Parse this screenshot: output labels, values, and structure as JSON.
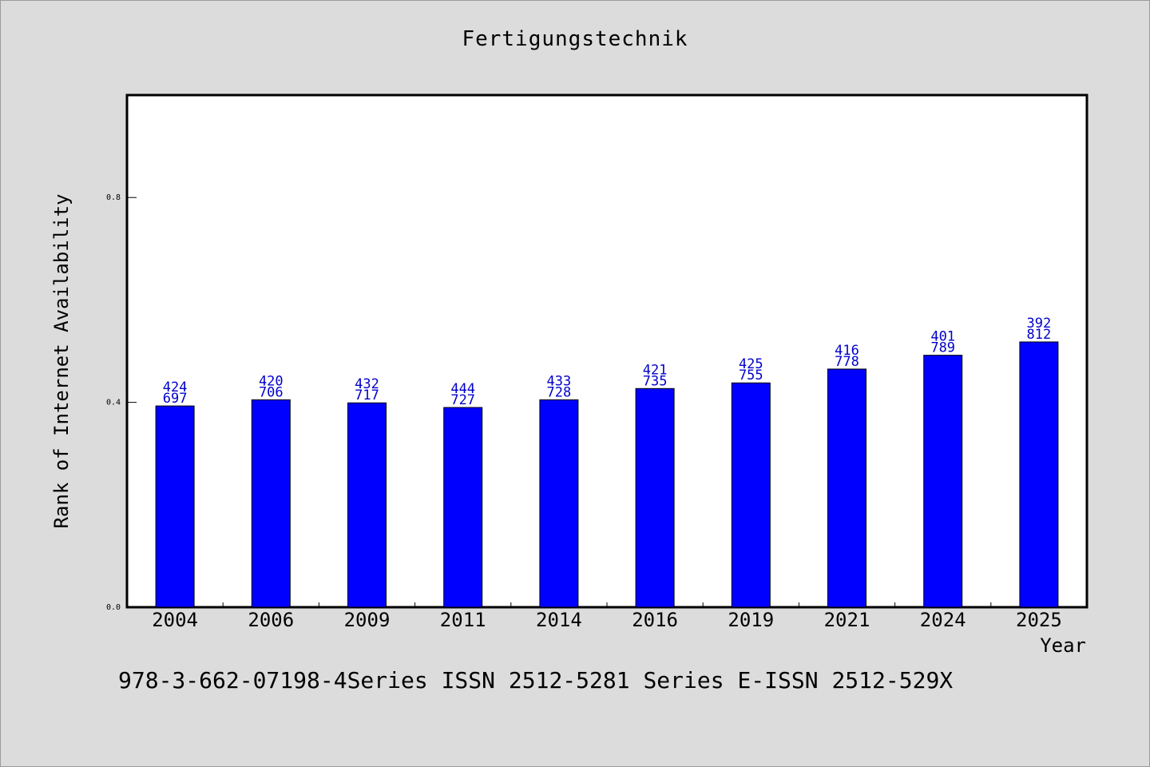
{
  "chart_data": {
    "type": "bar",
    "title": "Fertigungstechnik",
    "xlabel": "Year",
    "ylabel": "Rank of Internet Availability",
    "categories": [
      "2004",
      "2006",
      "2009",
      "2011",
      "2014",
      "2016",
      "2019",
      "2021",
      "2024",
      "2025"
    ],
    "values": [
      0.393,
      0.405,
      0.399,
      0.39,
      0.405,
      0.427,
      0.438,
      0.465,
      0.492,
      0.518
    ],
    "label_top": [
      "424",
      "420",
      "432",
      "444",
      "433",
      "421",
      "425",
      "416",
      "401",
      "392"
    ],
    "label_bottom": [
      "697",
      "706",
      "717",
      "727",
      "728",
      "735",
      "755",
      "778",
      "789",
      "812"
    ],
    "ylim": [
      0,
      1.0
    ],
    "yticks": [
      0.0,
      0.4,
      0.8
    ],
    "ytick_labels": [
      "0.0",
      "0.4",
      "0.8"
    ],
    "grid": false,
    "legend": "none",
    "bar_color": "#0000ff",
    "label_color": "#0000cc"
  },
  "footer": {
    "text": "978-3-662-07198-4Series ISSN 2512-5281 Series E-ISSN 2512-529X"
  }
}
